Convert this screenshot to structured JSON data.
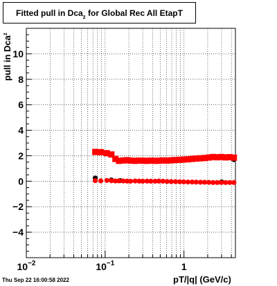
{
  "title": {
    "main": "Fitted pull in Dca",
    "sub": "z",
    "rest": " for Global Rec All EtapT"
  },
  "timestamp": "Thu Sep 22 16:00:58 2022",
  "chart_data": {
    "type": "scatter",
    "xlabel": "pT/|q| (GeV/c)",
    "ylabel": {
      "main": "pull in Dca",
      "sub": "z"
    },
    "x_scale": "log",
    "xlim": [
      0.01,
      4.5
    ],
    "ylim": [
      -6,
      12
    ],
    "grid": true,
    "y_ticks": [
      -4,
      -2,
      0,
      2,
      4,
      6,
      8,
      10
    ],
    "x_tick_labels": [
      {
        "value": 0.01,
        "base": "10",
        "exp": "−2"
      },
      {
        "value": 0.1,
        "base": "10",
        "exp": "−1"
      },
      {
        "value": 1,
        "base": "1",
        "exp": ""
      }
    ],
    "series": [
      {
        "marker": "square",
        "color": "#ff0000",
        "x": [
          0.075,
          0.088,
          0.105,
          0.12,
          0.135,
          0.15,
          0.17,
          0.19,
          0.21,
          0.24,
          0.27,
          0.3,
          0.34,
          0.38,
          0.43,
          0.48,
          0.54,
          0.61,
          0.69,
          0.78,
          0.88,
          0.99,
          1.12,
          1.27,
          1.43,
          1.62,
          1.83,
          2.07,
          2.34,
          2.64,
          2.98,
          3.37,
          3.81,
          4.3
        ],
        "y": [
          2.3,
          2.28,
          2.2,
          2.1,
          1.75,
          1.6,
          1.63,
          1.65,
          1.62,
          1.6,
          1.62,
          1.61,
          1.6,
          1.62,
          1.6,
          1.61,
          1.63,
          1.62,
          1.64,
          1.66,
          1.68,
          1.7,
          1.72,
          1.75,
          1.78,
          1.8,
          1.82,
          1.86,
          1.9,
          1.88,
          1.9,
          1.87,
          1.89,
          1.85
        ]
      },
      {
        "marker": "circle",
        "color": "#ff0000",
        "x": [
          0.075,
          0.088,
          0.105,
          0.12,
          0.135,
          0.15,
          0.17,
          0.19,
          0.21,
          0.24,
          0.27,
          0.3,
          0.34,
          0.38,
          0.43,
          0.48,
          0.54,
          0.61,
          0.69,
          0.78,
          0.88,
          0.99,
          1.12,
          1.27,
          1.43,
          1.62,
          1.83,
          2.07,
          2.34,
          2.64,
          2.98,
          3.37,
          3.81,
          4.3
        ],
        "y": [
          0.05,
          0.03,
          0.06,
          0.04,
          0.02,
          0.03,
          0.02,
          0.01,
          0.0,
          0.02,
          0.01,
          0.0,
          0.01,
          0.0,
          0.0,
          0.01,
          0.0,
          -0.02,
          -0.03,
          -0.03,
          -0.04,
          -0.05,
          -0.06,
          -0.06,
          -0.07,
          -0.08,
          -0.08,
          -0.09,
          -0.1,
          -0.1,
          -0.1,
          -0.1,
          -0.1,
          -0.1
        ]
      },
      {
        "marker": "circle",
        "color": "#000000",
        "x": [
          0.075,
          0.12,
          0.155,
          3.0,
          4.3
        ],
        "y": [
          0.25,
          0.1,
          0.05,
          -0.05,
          1.7
        ]
      }
    ]
  }
}
